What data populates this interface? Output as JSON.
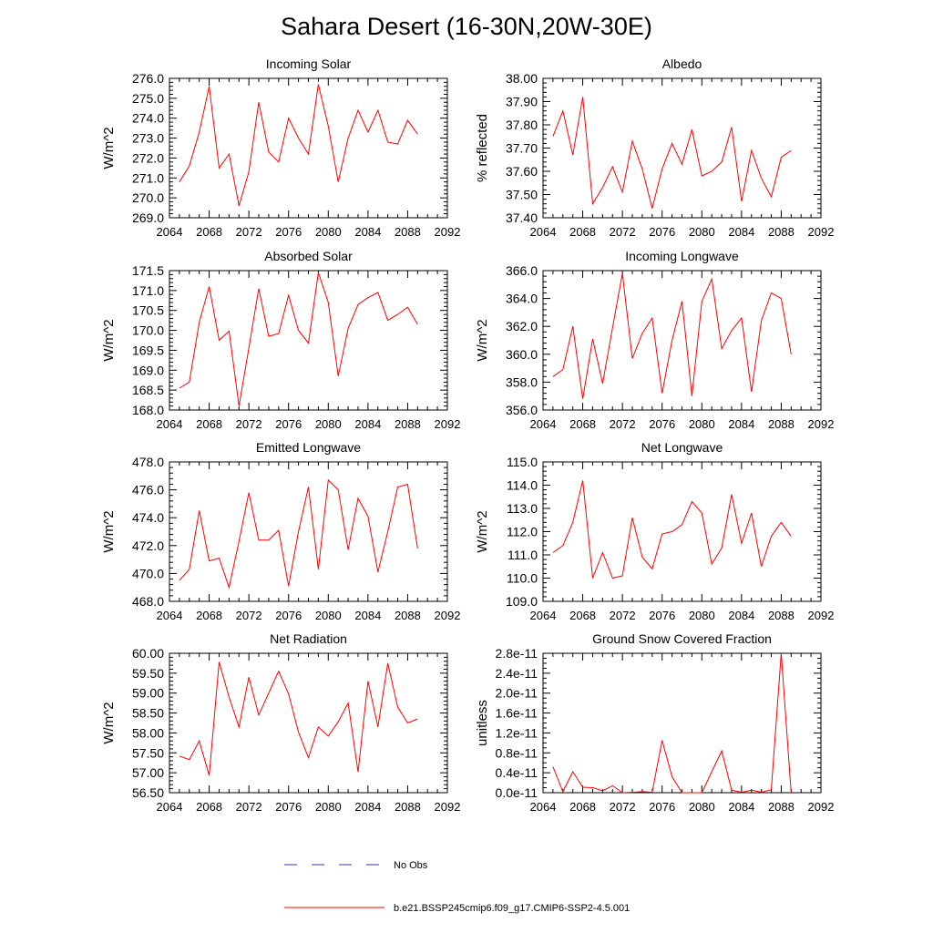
{
  "title": "Sahara Desert (16-30N,20W-30E)",
  "colors": {
    "model_line": "#ff0000",
    "obs_line": "#3333aa",
    "axis": "#000000"
  },
  "legend": {
    "items": [
      {
        "label": "No Obs",
        "style": "dashed",
        "color": "#3333aa"
      },
      {
        "label": "b.e21.BSSP245cmip6.f09_g17.CMIP6-SSP2-4.5.001",
        "style": "solid",
        "color": "#ff0000"
      }
    ]
  },
  "chart_data": [
    {
      "id": "incoming-solar",
      "type": "line",
      "title": "Incoming Solar",
      "ylabel": "W/m^2",
      "xlim": [
        2064,
        2092
      ],
      "xticks": [
        2064,
        2068,
        2072,
        2076,
        2080,
        2084,
        2088,
        2092
      ],
      "ylim": [
        269.0,
        276.0
      ],
      "yticks": [
        "269.0",
        "270.0",
        "271.0",
        "272.0",
        "273.0",
        "274.0",
        "275.0",
        "276.0"
      ],
      "yminor": 5,
      "x": [
        2065,
        2066,
        2067,
        2068,
        2069,
        2070,
        2071,
        2072,
        2073,
        2074,
        2075,
        2076,
        2077,
        2078,
        2079,
        2080,
        2081,
        2082,
        2083,
        2084,
        2085,
        2086,
        2087,
        2088,
        2089
      ],
      "series": [
        {
          "name": "b.e21.BSSP245cmip6.f09_g17.CMIP6-SSP2-4.5.001",
          "values": [
            270.8,
            271.6,
            273.3,
            275.6,
            271.5,
            272.2,
            269.6,
            271.3,
            274.8,
            272.3,
            271.8,
            274.0,
            273.0,
            272.2,
            275.7,
            273.6,
            270.8,
            273.0,
            274.4,
            273.3,
            274.4,
            272.8,
            272.7,
            273.9,
            273.2
          ]
        }
      ]
    },
    {
      "id": "albedo",
      "type": "line",
      "title": "Albedo",
      "ylabel": "% reflected",
      "xlim": [
        2064,
        2092
      ],
      "xticks": [
        2064,
        2068,
        2072,
        2076,
        2080,
        2084,
        2088,
        2092
      ],
      "ylim": [
        37.4,
        38.0
      ],
      "yticks": [
        "37.40",
        "37.50",
        "37.60",
        "37.70",
        "37.80",
        "37.90",
        "38.00"
      ],
      "yminor": 5,
      "x": [
        2065,
        2066,
        2067,
        2068,
        2069,
        2070,
        2071,
        2072,
        2073,
        2074,
        2075,
        2076,
        2077,
        2078,
        2079,
        2080,
        2081,
        2082,
        2083,
        2084,
        2085,
        2086,
        2087,
        2088,
        2089
      ],
      "series": [
        {
          "name": "b.e21.BSSP245cmip6.f09_g17.CMIP6-SSP2-4.5.001",
          "values": [
            37.75,
            37.86,
            37.67,
            37.92,
            37.46,
            37.53,
            37.62,
            37.51,
            37.73,
            37.61,
            37.44,
            37.61,
            37.72,
            37.63,
            37.78,
            37.58,
            37.6,
            37.64,
            37.79,
            37.47,
            37.69,
            37.57,
            37.49,
            37.66,
            37.69
          ]
        }
      ]
    },
    {
      "id": "absorbed-solar",
      "type": "line",
      "title": "Absorbed Solar",
      "ylabel": "W/m^2",
      "xlim": [
        2064,
        2092
      ],
      "xticks": [
        2064,
        2068,
        2072,
        2076,
        2080,
        2084,
        2088,
        2092
      ],
      "ylim": [
        168.0,
        171.5
      ],
      "yticks": [
        "168.0",
        "168.5",
        "169.0",
        "169.5",
        "170.0",
        "170.5",
        "171.0",
        "171.5"
      ],
      "yminor": 5,
      "x": [
        2065,
        2066,
        2067,
        2068,
        2069,
        2070,
        2071,
        2072,
        2073,
        2074,
        2075,
        2076,
        2077,
        2078,
        2079,
        2080,
        2081,
        2082,
        2083,
        2084,
        2085,
        2086,
        2087,
        2088,
        2089
      ],
      "series": [
        {
          "name": "b.e21.BSSP245cmip6.f09_g17.CMIP6-SSP2-4.5.001",
          "values": [
            168.55,
            168.7,
            170.2,
            171.1,
            169.75,
            169.98,
            168.1,
            169.55,
            171.05,
            169.85,
            169.92,
            170.88,
            170.0,
            169.68,
            171.45,
            170.7,
            168.85,
            170.05,
            170.65,
            170.82,
            170.95,
            170.25,
            170.4,
            170.58,
            170.15
          ]
        }
      ]
    },
    {
      "id": "incoming-longwave",
      "type": "line",
      "title": "Incoming Longwave",
      "ylabel": "W/m^2",
      "xlim": [
        2064,
        2092
      ],
      "xticks": [
        2064,
        2068,
        2072,
        2076,
        2080,
        2084,
        2088,
        2092
      ],
      "ylim": [
        356.0,
        366.0
      ],
      "yticks": [
        "356.0",
        "358.0",
        "360.0",
        "362.0",
        "364.0",
        "366.0"
      ],
      "yminor": 5,
      "x": [
        2065,
        2066,
        2067,
        2068,
        2069,
        2070,
        2071,
        2072,
        2073,
        2074,
        2075,
        2076,
        2077,
        2078,
        2079,
        2080,
        2081,
        2082,
        2083,
        2084,
        2085,
        2086,
        2087,
        2088,
        2089
      ],
      "series": [
        {
          "name": "b.e21.BSSP245cmip6.f09_g17.CMIP6-SSP2-4.5.001",
          "values": [
            358.4,
            358.9,
            362.0,
            356.8,
            361.1,
            357.9,
            361.9,
            365.8,
            359.7,
            361.5,
            362.6,
            357.2,
            361.0,
            363.8,
            357.0,
            363.8,
            365.4,
            360.4,
            361.7,
            362.6,
            357.3,
            362.4,
            364.4,
            364.0,
            360.0
          ]
        }
      ]
    },
    {
      "id": "emitted-longwave",
      "type": "line",
      "title": "Emitted Longwave",
      "ylabel": "W/m^2",
      "xlim": [
        2064,
        2092
      ],
      "xticks": [
        2064,
        2068,
        2072,
        2076,
        2080,
        2084,
        2088,
        2092
      ],
      "ylim": [
        468.0,
        478.0
      ],
      "yticks": [
        "468.0",
        "470.0",
        "472.0",
        "474.0",
        "476.0",
        "478.0"
      ],
      "yminor": 5,
      "x": [
        2065,
        2066,
        2067,
        2068,
        2069,
        2070,
        2071,
        2072,
        2073,
        2074,
        2075,
        2076,
        2077,
        2078,
        2079,
        2080,
        2081,
        2082,
        2083,
        2084,
        2085,
        2086,
        2087,
        2088,
        2089
      ],
      "series": [
        {
          "name": "b.e21.BSSP245cmip6.f09_g17.CMIP6-SSP2-4.5.001",
          "values": [
            469.5,
            470.3,
            474.5,
            470.9,
            471.1,
            469.0,
            472.3,
            475.8,
            472.4,
            472.4,
            473.1,
            469.1,
            473.0,
            476.2,
            470.3,
            476.7,
            476.0,
            471.7,
            475.4,
            474.1,
            470.1,
            473.0,
            476.2,
            476.4,
            471.8
          ]
        }
      ]
    },
    {
      "id": "net-longwave",
      "type": "line",
      "title": "Net Longwave",
      "ylabel": "W/m^2",
      "xlim": [
        2064,
        2092
      ],
      "xticks": [
        2064,
        2068,
        2072,
        2076,
        2080,
        2084,
        2088,
        2092
      ],
      "ylim": [
        109.0,
        115.0
      ],
      "yticks": [
        "109.0",
        "110.0",
        "111.0",
        "112.0",
        "113.0",
        "114.0",
        "115.0"
      ],
      "yminor": 5,
      "x": [
        2065,
        2066,
        2067,
        2068,
        2069,
        2070,
        2071,
        2072,
        2073,
        2074,
        2075,
        2076,
        2077,
        2078,
        2079,
        2080,
        2081,
        2082,
        2083,
        2084,
        2085,
        2086,
        2087,
        2088,
        2089
      ],
      "series": [
        {
          "name": "b.e21.BSSP245cmip6.f09_g17.CMIP6-SSP2-4.5.001",
          "values": [
            111.1,
            111.4,
            112.4,
            114.2,
            110.0,
            111.1,
            110.0,
            110.1,
            112.6,
            110.9,
            110.4,
            111.9,
            112.0,
            112.3,
            113.3,
            112.8,
            110.6,
            111.3,
            113.6,
            111.5,
            112.8,
            110.5,
            111.8,
            112.4,
            111.8
          ]
        }
      ]
    },
    {
      "id": "net-radiation",
      "type": "line",
      "title": "Net Radiation",
      "ylabel": "W/m^2",
      "xlim": [
        2064,
        2092
      ],
      "xticks": [
        2064,
        2068,
        2072,
        2076,
        2080,
        2084,
        2088,
        2092
      ],
      "ylim": [
        56.5,
        60.0
      ],
      "yticks": [
        "56.50",
        "57.00",
        "57.50",
        "58.00",
        "58.50",
        "59.00",
        "59.50",
        "60.00"
      ],
      "yminor": 5,
      "x": [
        2065,
        2066,
        2067,
        2068,
        2069,
        2070,
        2071,
        2072,
        2073,
        2074,
        2075,
        2076,
        2077,
        2078,
        2079,
        2080,
        2081,
        2082,
        2083,
        2084,
        2085,
        2086,
        2087,
        2088,
        2089
      ],
      "series": [
        {
          "name": "b.e21.BSSP245cmip6.f09_g17.CMIP6-SSP2-4.5.001",
          "values": [
            57.42,
            57.33,
            57.8,
            56.93,
            59.78,
            58.9,
            58.15,
            59.4,
            58.45,
            59.0,
            59.55,
            58.98,
            58.02,
            57.38,
            58.15,
            57.92,
            58.28,
            58.75,
            57.02,
            59.3,
            58.15,
            59.75,
            58.65,
            58.25,
            58.35
          ]
        }
      ]
    },
    {
      "id": "ground-snow-covered-fraction",
      "type": "line",
      "title": "Ground Snow Covered Fraction",
      "ylabel": "unitless",
      "xlim": [
        2064,
        2092
      ],
      "xticks": [
        2064,
        2068,
        2072,
        2076,
        2080,
        2084,
        2088,
        2092
      ],
      "ylim": [
        0.0,
        2.8e-11
      ],
      "yticks": [
        "0.0e-11",
        "0.4e-11",
        "0.8e-11",
        "1.2e-11",
        "1.6e-11",
        "2.0e-11",
        "2.4e-11",
        "2.8e-11"
      ],
      "yminor": 4,
      "x": [
        2065,
        2066,
        2067,
        2068,
        2069,
        2070,
        2071,
        2072,
        2073,
        2074,
        2075,
        2076,
        2077,
        2078,
        2079,
        2080,
        2081,
        2082,
        2083,
        2084,
        2085,
        2086,
        2087,
        2088,
        2089
      ],
      "series": [
        {
          "name": "b.e21.BSSP245cmip6.f09_g17.CMIP6-SSP2-4.5.001",
          "values": [
            5.2e-12,
            2e-13,
            4.2e-12,
            1.1e-12,
            1e-12,
            4e-13,
            1.4e-12,
            0.0,
            1e-13,
            2e-13,
            1e-13,
            1.05e-11,
            3.2e-12,
            0.0,
            0.0,
            0.0,
            4.2e-12,
            8.4e-12,
            5e-13,
            1e-13,
            5e-13,
            1e-13,
            6e-13,
            2.8e-11,
            0.0
          ]
        }
      ]
    }
  ]
}
